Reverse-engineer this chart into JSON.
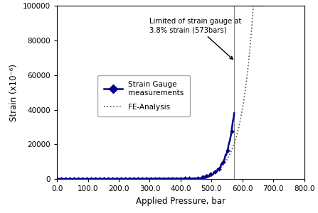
{
  "title": "",
  "xlabel": "Applied Pressure, bar",
  "ylabel": "Strain (x10⁻⁶)",
  "xlim": [
    0,
    800
  ],
  "ylim": [
    0,
    100000
  ],
  "xticks": [
    0.0,
    100.0,
    200.0,
    300.0,
    400.0,
    500.0,
    600.0,
    700.0,
    800.0
  ],
  "yticks": [
    0,
    20000,
    40000,
    60000,
    80000,
    100000
  ],
  "vline_x": 573,
  "annotation_text": "Limited of strain gauge at\n3.8% strain (573bars)",
  "legend_strain_gauge": "Strain Gauge\nmeasurements",
  "legend_fe": "FE-Analysis",
  "line_color_sg": "#00008B",
  "line_color_fe": "#808080",
  "background_color": "#ffffff",
  "fe_critical": 635,
  "fe_max_x": 668,
  "sg_max_x": 573,
  "sg_max_y": 38000,
  "sg_onset": 430
}
